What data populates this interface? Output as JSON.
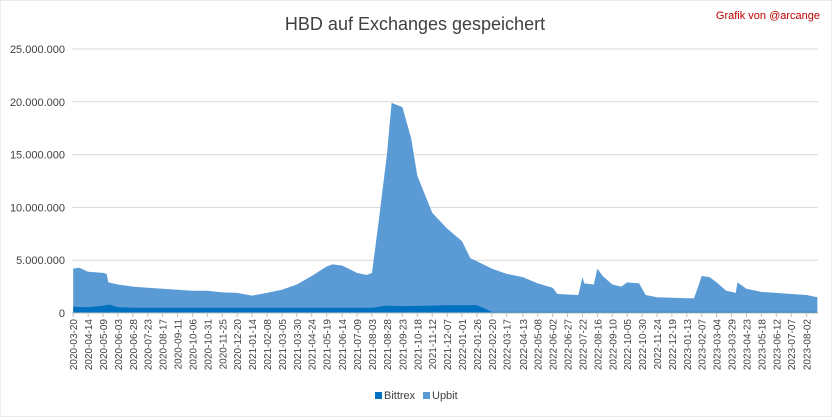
{
  "chart_data": {
    "type": "area",
    "title": "HBD auf Exchanges gespeichert",
    "credit": "Grafik von @arcange",
    "ylim": [
      0,
      25000000
    ],
    "yticks": [
      0,
      5000000,
      10000000,
      15000000,
      20000000,
      25000000
    ],
    "ytick_labels": [
      "0",
      "5.000.000",
      "10.000.000",
      "15.000.000",
      "20.000.000",
      "25.000.000"
    ],
    "x_tick_labels": [
      "2020-03-20",
      "2020-04-14",
      "2020-05-09",
      "2020-06-03",
      "2020-06-28",
      "2020-07-23",
      "2020-08-17",
      "2020-09-11",
      "2020-10-06",
      "2020-10-31",
      "2020-11-25",
      "2020-12-20",
      "2021-01-14",
      "2021-02-08",
      "2021-03-05",
      "2021-03-30",
      "2021-04-24",
      "2021-05-19",
      "2021-06-14",
      "2021-07-09",
      "2021-08-03",
      "2021-08-28",
      "2021-09-23",
      "2021-10-18",
      "2021-11-12",
      "2021-12-07",
      "2022-01-01",
      "2022-01-26",
      "2022-02-20",
      "2022-03-17",
      "2022-04-13",
      "2022-05-08",
      "2022-06-02",
      "2022-06-27",
      "2022-07-22",
      "2022-08-16",
      "2022-09-10",
      "2022-10-05",
      "2022-10-30",
      "2022-11-24",
      "2022-12-19",
      "2023-01-13",
      "2023-02-07",
      "2023-03-04",
      "2023-03-29",
      "2023-04-23",
      "2023-05-18",
      "2023-06-12",
      "2023-07-07",
      "2023-08-02"
    ],
    "grid": true,
    "legend_position": "bottom",
    "stacked": true,
    "series": [
      {
        "name": "Bittrex",
        "color": "#0070c0",
        "points": [
          [
            "2020-03-20",
            600000
          ],
          [
            "2020-04-14",
            550000
          ],
          [
            "2020-05-09",
            700000
          ],
          [
            "2020-05-20",
            800000
          ],
          [
            "2020-06-03",
            550000
          ],
          [
            "2020-06-28",
            500000
          ],
          [
            "2020-08-17",
            500000
          ],
          [
            "2020-10-31",
            500000
          ],
          [
            "2021-01-14",
            500000
          ],
          [
            "2021-03-05",
            500000
          ],
          [
            "2021-05-19",
            500000
          ],
          [
            "2021-08-03",
            500000
          ],
          [
            "2021-08-28",
            700000
          ],
          [
            "2021-09-23",
            650000
          ],
          [
            "2021-11-12",
            700000
          ],
          [
            "2021-12-07",
            750000
          ],
          [
            "2022-01-26",
            750000
          ],
          [
            "2022-02-20",
            100000
          ],
          [
            "2023-08-20",
            100000
          ]
        ]
      },
      {
        "name": "Upbit",
        "color": "#5b9bd5",
        "total_points": [
          [
            "2020-03-20",
            4200000
          ],
          [
            "2020-03-30",
            4300000
          ],
          [
            "2020-04-14",
            3900000
          ],
          [
            "2020-05-09",
            3800000
          ],
          [
            "2020-05-15",
            3700000
          ],
          [
            "2020-05-18",
            2900000
          ],
          [
            "2020-06-03",
            2700000
          ],
          [
            "2020-06-28",
            2500000
          ],
          [
            "2020-07-23",
            2400000
          ],
          [
            "2020-08-17",
            2300000
          ],
          [
            "2020-09-11",
            2200000
          ],
          [
            "2020-10-06",
            2100000
          ],
          [
            "2020-10-31",
            2100000
          ],
          [
            "2020-11-25",
            1950000
          ],
          [
            "2020-12-20",
            1900000
          ],
          [
            "2021-01-14",
            1650000
          ],
          [
            "2021-02-08",
            1900000
          ],
          [
            "2021-03-05",
            2200000
          ],
          [
            "2021-03-30",
            2700000
          ],
          [
            "2021-04-24",
            3500000
          ],
          [
            "2021-05-19",
            4400000
          ],
          [
            "2021-05-29",
            4600000
          ],
          [
            "2021-06-14",
            4500000
          ],
          [
            "2021-07-09",
            3800000
          ],
          [
            "2021-07-25",
            3600000
          ],
          [
            "2021-08-03",
            3800000
          ],
          [
            "2021-08-15",
            9000000
          ],
          [
            "2021-08-28",
            15000000
          ],
          [
            "2021-09-05",
            19900000
          ],
          [
            "2021-09-23",
            19500000
          ],
          [
            "2021-10-08",
            16500000
          ],
          [
            "2021-10-18",
            13000000
          ],
          [
            "2021-11-12",
            9500000
          ],
          [
            "2021-12-07",
            8000000
          ],
          [
            "2022-01-01",
            6800000
          ],
          [
            "2022-01-15",
            5200000
          ],
          [
            "2022-01-26",
            4900000
          ],
          [
            "2022-02-20",
            4200000
          ],
          [
            "2022-03-17",
            3700000
          ],
          [
            "2022-04-13",
            3400000
          ],
          [
            "2022-05-08",
            2800000
          ],
          [
            "2022-06-02",
            2400000
          ],
          [
            "2022-06-10",
            1800000
          ],
          [
            "2022-06-27",
            1750000
          ],
          [
            "2022-07-15",
            1700000
          ],
          [
            "2022-07-22",
            3400000
          ],
          [
            "2022-07-25",
            2800000
          ],
          [
            "2022-08-10",
            2700000
          ],
          [
            "2022-08-16",
            4200000
          ],
          [
            "2022-08-25",
            3500000
          ],
          [
            "2022-09-10",
            2700000
          ],
          [
            "2022-09-25",
            2500000
          ],
          [
            "2022-10-05",
            2900000
          ],
          [
            "2022-10-25",
            2800000
          ],
          [
            "2022-11-05",
            1700000
          ],
          [
            "2022-11-24",
            1500000
          ],
          [
            "2022-12-19",
            1450000
          ],
          [
            "2023-01-13",
            1400000
          ],
          [
            "2023-01-25",
            1400000
          ],
          [
            "2023-02-03",
            2800000
          ],
          [
            "2023-02-07",
            3500000
          ],
          [
            "2023-02-20",
            3400000
          ],
          [
            "2023-03-04",
            2900000
          ],
          [
            "2023-03-20",
            2100000
          ],
          [
            "2023-03-29",
            2000000
          ],
          [
            "2023-04-05",
            1900000
          ],
          [
            "2023-04-08",
            2900000
          ],
          [
            "2023-04-23",
            2300000
          ],
          [
            "2023-05-18",
            2000000
          ],
          [
            "2023-06-12",
            1900000
          ],
          [
            "2023-07-07",
            1800000
          ],
          [
            "2023-08-02",
            1700000
          ],
          [
            "2023-08-20",
            1500000
          ]
        ]
      }
    ]
  }
}
